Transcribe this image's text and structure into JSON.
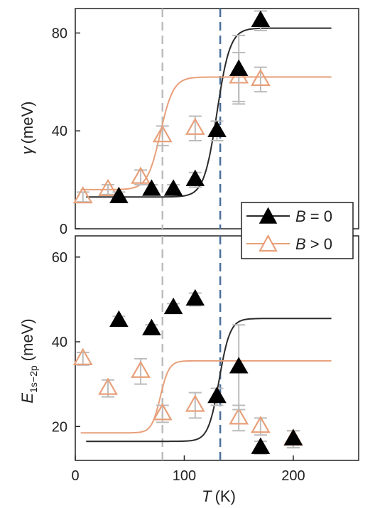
{
  "chart_data": [
    {
      "type": "scatter",
      "panel": "top",
      "ylabel_symbol": "γ",
      "ylabel_unit": "(meV)",
      "xlim": [
        0,
        260
      ],
      "ylim": [
        0,
        90
      ],
      "yticks": [
        0,
        40,
        80
      ],
      "vlines": [
        {
          "x": 80,
          "color": "#bdbdbd",
          "style": "dashed"
        },
        {
          "x": 133,
          "color": "#4a6f9c",
          "style": "dashed"
        }
      ],
      "series": [
        {
          "key": "b0",
          "name_symbol": "B",
          "name_rest": " = 0",
          "color": "#2b2b2b",
          "marker": "filled-triangle",
          "points": [
            {
              "x": 40,
              "y": 13,
              "err": 2
            },
            {
              "x": 70,
              "y": 16,
              "err": 2
            },
            {
              "x": 90,
              "y": 16,
              "err": 2
            },
            {
              "x": 110,
              "y": 20,
              "err": 3
            },
            {
              "x": 130,
              "y": 40,
              "err": 4
            },
            {
              "x": 150,
              "y": 65,
              "err": 14
            },
            {
              "x": 170,
              "y": 85,
              "err": 4
            }
          ],
          "fit": {
            "low": 13,
            "high": 82,
            "x0": 130,
            "w": 6,
            "xstart": 10,
            "xend": 235
          }
        },
        {
          "key": "bpos",
          "name_symbol": "B",
          "name_rest": " > 0",
          "color": "#e8a07a",
          "marker": "open-triangle",
          "points": [
            {
              "x": 7,
              "y": 13,
              "err": 2
            },
            {
              "x": 30,
              "y": 16,
              "err": 2
            },
            {
              "x": 60,
              "y": 21,
              "err": 3
            },
            {
              "x": 80,
              "y": 38,
              "err": 4
            },
            {
              "x": 110,
              "y": 41,
              "err": 5
            },
            {
              "x": 150,
              "y": 62,
              "err": 10
            },
            {
              "x": 170,
              "y": 61,
              "err": 5
            }
          ],
          "fit": {
            "low": 16,
            "high": 62,
            "x0": 78,
            "w": 6,
            "xstart": 5,
            "xend": 235
          }
        }
      ]
    },
    {
      "type": "scatter",
      "panel": "bottom",
      "ylabel_main": "E",
      "ylabel_sub": "1s−2p",
      "ylabel_unit": "(meV)",
      "xlabel_symbol": "T",
      "xlabel_unit": "(K)",
      "xlim": [
        0,
        260
      ],
      "ylim": [
        12,
        65
      ],
      "yticks": [
        20,
        40,
        60
      ],
      "xticks": [
        0,
        100,
        200
      ],
      "vlines": [
        {
          "x": 80,
          "color": "#bdbdbd",
          "style": "dashed"
        },
        {
          "x": 133,
          "color": "#4a6f9c",
          "style": "dashed"
        }
      ],
      "series": [
        {
          "key": "b0",
          "color": "#2b2b2b",
          "marker": "filled-triangle",
          "points": [
            {
              "x": 40,
              "y": 45,
              "err": 1
            },
            {
              "x": 70,
              "y": 43,
              "err": 1
            },
            {
              "x": 90,
              "y": 48,
              "err": 1
            },
            {
              "x": 110,
              "y": 50,
              "err": 1.5
            },
            {
              "x": 130,
              "y": 27,
              "err": 2
            },
            {
              "x": 150,
              "y": 34,
              "err": 10
            },
            {
              "x": 170,
              "y": 15,
              "err": 1.5
            },
            {
              "x": 200,
              "y": 17,
              "err": 2
            }
          ],
          "fit": {
            "high": 45.5,
            "low": 16.5,
            "x0": 132,
            "w": 5,
            "xstart": 10,
            "xend": 235
          }
        },
        {
          "key": "bpos",
          "color": "#e8a07a",
          "marker": "open-triangle",
          "points": [
            {
              "x": 7,
              "y": 36,
              "err": 1.5
            },
            {
              "x": 30,
              "y": 29,
              "err": 2
            },
            {
              "x": 60,
              "y": 33,
              "err": 3
            },
            {
              "x": 80,
              "y": 23,
              "err": 2
            },
            {
              "x": 110,
              "y": 25,
              "err": 3
            },
            {
              "x": 150,
              "y": 22,
              "err": 3
            },
            {
              "x": 170,
              "y": 20,
              "err": 2
            },
            {
              "x": 200,
              "y": 17,
              "err": 2
            }
          ],
          "fit": {
            "high": 35.5,
            "low": 18.5,
            "x0": 78,
            "w": 4,
            "xstart": 5,
            "xend": 235
          }
        }
      ]
    }
  ]
}
